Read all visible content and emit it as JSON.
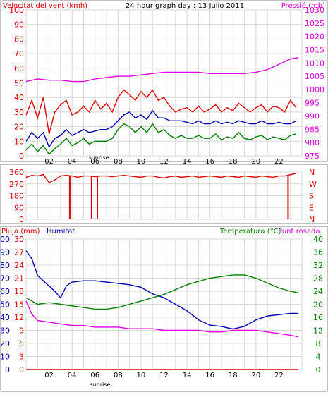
{
  "chart_data": [
    {
      "type": "line",
      "title": "24 hour graph day : 13 Julio 2011",
      "ylabel_left": "Velocitat del vent (kmh)",
      "ylabel_right": "Pressió (mb)",
      "x_tick_labels": [
        "02",
        "04",
        "06",
        "08",
        "10",
        "12",
        "14",
        "16",
        "18",
        "20",
        "22"
      ],
      "x_tick_hours": [
        2,
        4,
        6,
        8,
        10,
        12,
        14,
        16,
        18,
        20,
        22
      ],
      "x_annotation": "sunrise",
      "ylim_left": [
        0,
        100
      ],
      "left_ticks": [
        "0",
        "10",
        "20",
        "30",
        "40",
        "50",
        "60",
        "70",
        "80",
        "90",
        "100"
      ],
      "ylim_right": [
        975,
        1030
      ],
      "right_ticks": [
        "975",
        "980",
        "985",
        "990",
        "995",
        "1000",
        "1005",
        "1010",
        "1015",
        "1020",
        "1025",
        "1030"
      ],
      "grid": true,
      "series": [
        {
          "axis": "left",
          "color": "#e00000",
          "x": [
            0,
            0.5,
            1,
            1.5,
            2,
            2.5,
            3,
            3.5,
            4,
            4.5,
            5,
            5.5,
            6,
            6.5,
            7,
            7.5,
            8,
            8.5,
            9,
            9.5,
            10,
            10.5,
            11,
            11.5,
            12,
            12.5,
            13,
            13.5,
            14,
            14.5,
            15,
            15.5,
            16,
            16.5,
            17,
            17.5,
            18,
            18.5,
            19,
            19.5,
            20,
            20.5,
            21,
            21.5,
            22,
            22.5,
            23,
            23.5
          ],
          "values": [
            28,
            38,
            26,
            40,
            15,
            30,
            35,
            38,
            28,
            30,
            34,
            30,
            38,
            32,
            36,
            30,
            40,
            45,
            42,
            38,
            44,
            40,
            45,
            38,
            40,
            34,
            30,
            32,
            33,
            30,
            34,
            30,
            32,
            35,
            30,
            33,
            31,
            36,
            33,
            30,
            33,
            35,
            30,
            34,
            33,
            30,
            38,
            33
          ]
        },
        {
          "axis": "left",
          "color": "#0000b0",
          "x": [
            0,
            0.5,
            1,
            1.5,
            2,
            2.5,
            3,
            3.5,
            4,
            4.5,
            5,
            5.5,
            6,
            6.5,
            7,
            7.5,
            8,
            8.5,
            9,
            9.5,
            10,
            10.5,
            11,
            11.5,
            12,
            12.5,
            13,
            13.5,
            14,
            14.5,
            15,
            15.5,
            16,
            16.5,
            17,
            17.5,
            18,
            18.5,
            19,
            19.5,
            20,
            20.5,
            21,
            21.5,
            22,
            22.5,
            23,
            23.5
          ],
          "values": [
            10,
            16,
            12,
            16,
            6,
            12,
            14,
            18,
            14,
            16,
            18,
            16,
            17,
            18,
            18,
            20,
            24,
            28,
            30,
            26,
            28,
            25,
            31,
            26,
            26,
            24,
            24,
            24,
            23,
            22,
            24,
            22,
            22,
            24,
            22,
            23,
            22,
            24,
            23,
            22,
            22,
            24,
            22,
            22,
            23,
            22,
            22,
            24
          ]
        },
        {
          "axis": "left",
          "color": "#008000",
          "x": [
            0,
            0.5,
            1,
            1.5,
            2,
            2.5,
            3,
            3.5,
            4,
            4.5,
            5,
            5.5,
            6,
            6.5,
            7,
            7.5,
            8,
            8.5,
            9,
            9.5,
            10,
            10.5,
            11,
            11.5,
            12,
            12.5,
            13,
            13.5,
            14,
            14.5,
            15,
            15.5,
            16,
            16.5,
            17,
            17.5,
            18,
            18.5,
            19,
            19.5,
            20,
            20.5,
            21,
            21.5,
            22,
            22.5,
            23,
            23.5
          ],
          "values": [
            4,
            8,
            3,
            7,
            1,
            5,
            8,
            12,
            7,
            9,
            12,
            8,
            10,
            10,
            10,
            12,
            18,
            22,
            20,
            16,
            20,
            16,
            22,
            16,
            18,
            14,
            12,
            14,
            12,
            12,
            14,
            12,
            12,
            15,
            11,
            13,
            12,
            16,
            12,
            11,
            13,
            14,
            11,
            13,
            12,
            11,
            14,
            15
          ]
        },
        {
          "axis": "right",
          "color": "#e000e0",
          "x": [
            0,
            1,
            2,
            3,
            4,
            5,
            6,
            7,
            8,
            9,
            10,
            11,
            12,
            13,
            14,
            15,
            16,
            17,
            18,
            19,
            20,
            21,
            22,
            23,
            23.7
          ],
          "values": [
            1003,
            1004,
            1003.5,
            1003.5,
            1003,
            1003,
            1004,
            1004.5,
            1005,
            1005,
            1005.5,
            1006,
            1006.5,
            1006.5,
            1006.5,
            1006.5,
            1006,
            1006,
            1006,
            1006,
            1006.5,
            1007.5,
            1009.5,
            1011.5,
            1012
          ]
        }
      ]
    },
    {
      "type": "line",
      "title": "",
      "ylabel_right_letters": [
        "N",
        "W",
        "S",
        "E",
        "N"
      ],
      "ylim": [
        0,
        360
      ],
      "left_ticks": [
        "0",
        "90",
        "180",
        "270",
        "360"
      ],
      "grid": true,
      "series": [
        {
          "color": "#e00000",
          "x": [
            0,
            0.5,
            1,
            1.5,
            2,
            2.5,
            3,
            3.5,
            4,
            4.5,
            5,
            5.5,
            6,
            6.5,
            7,
            7.5,
            8,
            8.5,
            9,
            9.5,
            10,
            10.5,
            11,
            11.5,
            12,
            12.5,
            13,
            13.5,
            14,
            14.5,
            15,
            15.5,
            16,
            16.5,
            17,
            17.5,
            18,
            18.5,
            19,
            19.5,
            20,
            20.5,
            21,
            21.5,
            22,
            22.5,
            23,
            23.5
          ],
          "values": [
            320,
            335,
            330,
            340,
            280,
            300,
            330,
            335,
            330,
            320,
            330,
            330,
            325,
            330,
            330,
            325,
            330,
            335,
            330,
            325,
            320,
            330,
            330,
            320,
            315,
            325,
            330,
            320,
            325,
            330,
            320,
            325,
            330,
            325,
            320,
            330,
            325,
            320,
            330,
            325,
            320,
            330,
            325,
            320,
            330,
            330,
            340,
            350
          ]
        },
        {
          "color": "#e00000",
          "segments": [
            [
              3.8,
              0,
              3.8,
              330
            ],
            [
              5.7,
              0,
              5.7,
              330
            ],
            [
              6.2,
              0,
              6.2,
              330
            ],
            [
              22.8,
              0,
              22.8,
              330
            ]
          ]
        }
      ]
    },
    {
      "type": "line",
      "title": "",
      "labels_top": [
        "Pluja (mm)",
        "Humitat",
        "Temperatura (°C)",
        "Punt rosada"
      ],
      "ylim_left": [
        0,
        30
      ],
      "left_outer_ticks": [
        "0",
        "10",
        "20",
        "30",
        "40",
        "50",
        "60",
        "70",
        "80",
        "90",
        "100"
      ],
      "left_inner_ticks": [
        "0",
        "3",
        "6",
        "9",
        "12",
        "15",
        "18",
        "21",
        "24",
        "27",
        "30"
      ],
      "ylim_right": [
        0,
        40
      ],
      "right_ticks": [
        "0",
        "4",
        "8",
        "12",
        "16",
        "20",
        "24",
        "28",
        "32",
        "36",
        "40"
      ],
      "grid": true,
      "series": [
        {
          "name": "Pluja (mm)",
          "axis": "left",
          "color": "#e00000",
          "x": [
            0,
            23.7
          ],
          "values": [
            0,
            0
          ]
        },
        {
          "name": "Humitat",
          "axis": "humidity",
          "color": "#0000b0",
          "x": [
            0,
            0.5,
            1,
            1.5,
            2,
            2.5,
            3,
            3.5,
            4,
            5,
            6,
            7,
            8,
            9,
            10,
            11,
            12,
            13,
            14,
            15,
            16,
            17,
            18,
            19,
            20,
            21,
            22,
            23,
            23.7
          ],
          "values": [
            91,
            85,
            72,
            68,
            64,
            60,
            55,
            64,
            67,
            68,
            68,
            67,
            66,
            65,
            63,
            58,
            55,
            50,
            45,
            38,
            34,
            33,
            31,
            33,
            38,
            41,
            42,
            43,
            43
          ]
        },
        {
          "name": "Temperatura (°C)",
          "axis": "right",
          "color": "#008000",
          "x": [
            0,
            1,
            2,
            3,
            4,
            5,
            6,
            7,
            8,
            9,
            10,
            11,
            12,
            13,
            14,
            15,
            16,
            17,
            18,
            19,
            20,
            21,
            22,
            23,
            23.7
          ],
          "values": [
            22,
            20,
            20.5,
            20,
            19.5,
            19,
            18.5,
            18.5,
            19,
            20,
            21,
            22,
            23,
            24.5,
            26,
            27,
            28,
            28.5,
            29,
            29,
            28,
            26.5,
            25,
            24,
            23.5
          ]
        },
        {
          "name": "Punt rosada",
          "axis": "right",
          "color": "#e000e0",
          "x": [
            0,
            0.5,
            1,
            2,
            3,
            4,
            5,
            6,
            7,
            8,
            9,
            10,
            11,
            12,
            13,
            14,
            15,
            16,
            17,
            18,
            19,
            20,
            21,
            22,
            23,
            23.7
          ],
          "values": [
            21,
            17,
            15,
            14.5,
            14,
            13.5,
            13.5,
            13,
            13,
            13,
            12.5,
            12.5,
            12.5,
            12,
            12,
            12,
            12,
            11.5,
            11.5,
            12,
            12,
            12,
            11.5,
            11,
            10.5,
            10
          ]
        }
      ]
    }
  ],
  "colors": {
    "red": "#e00000",
    "blue": "#0000b0",
    "green": "#008000",
    "magenta": "#e000e0",
    "grid": "#d8d8d8",
    "frame": "#808080"
  }
}
